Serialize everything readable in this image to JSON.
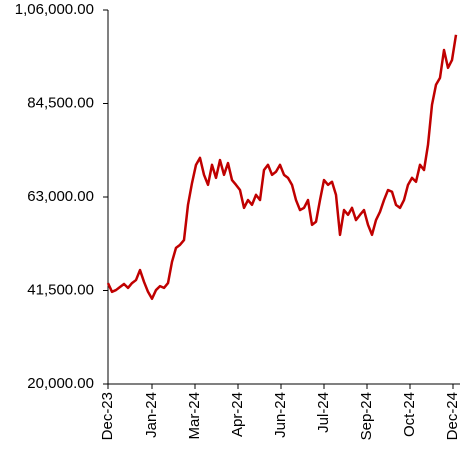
{
  "chart_data": {
    "type": "line",
    "series": [
      {
        "color": "#c00000",
        "values": [
          43200,
          41200,
          41600,
          42300,
          43000,
          42100,
          43200,
          43900,
          46200,
          43500,
          41200,
          39600,
          41600,
          42500,
          42100,
          43200,
          48100,
          51300,
          52000,
          53100,
          61200,
          66200,
          70400,
          72000,
          68100,
          65800,
          70400,
          67400,
          71500,
          68100,
          70800,
          66900,
          65800,
          64600,
          60500,
          62300,
          61200,
          63500,
          62300,
          69200,
          70400,
          68100,
          68800,
          70400,
          68100,
          67400,
          65800,
          62300,
          60000,
          60500,
          62300,
          56600,
          57300,
          62300,
          66900,
          65800,
          66500,
          63500,
          54300,
          60000,
          58900,
          60500,
          57700,
          58900,
          60000,
          56600,
          54300,
          57700,
          59600,
          62300,
          64600,
          64200,
          61200,
          60500,
          62300,
          65800,
          67400,
          66500,
          70400,
          69200,
          75000,
          84200,
          88800,
          90400,
          96800,
          92700,
          94500,
          100300
        ]
      }
    ],
    "xlim": [
      0,
      87
    ],
    "xticks": [
      {
        "value": 0,
        "label": "Dec-23"
      },
      {
        "value": 11,
        "label": "Jan-24"
      },
      {
        "value": 21.75,
        "label": "Mar-24"
      },
      {
        "value": 32.5,
        "label": "Apr-24"
      },
      {
        "value": 43.25,
        "label": "Jun-24"
      },
      {
        "value": 54,
        "label": "Jul-24"
      },
      {
        "value": 64.75,
        "label": "Sep-24"
      },
      {
        "value": 75.5,
        "label": "Oct-24"
      },
      {
        "value": 86.25,
        "label": "Dec-24"
      }
    ],
    "ylim": [
      20000,
      106000
    ],
    "yticks": [
      {
        "value": 20000,
        "label": "20,000.00"
      },
      {
        "value": 41500,
        "label": "41,500.00"
      },
      {
        "value": 63000,
        "label": "63,000.00"
      },
      {
        "value": 84500,
        "label": "84,500.00"
      },
      {
        "value": 106000,
        "label": "1,06,000.00"
      }
    ]
  }
}
